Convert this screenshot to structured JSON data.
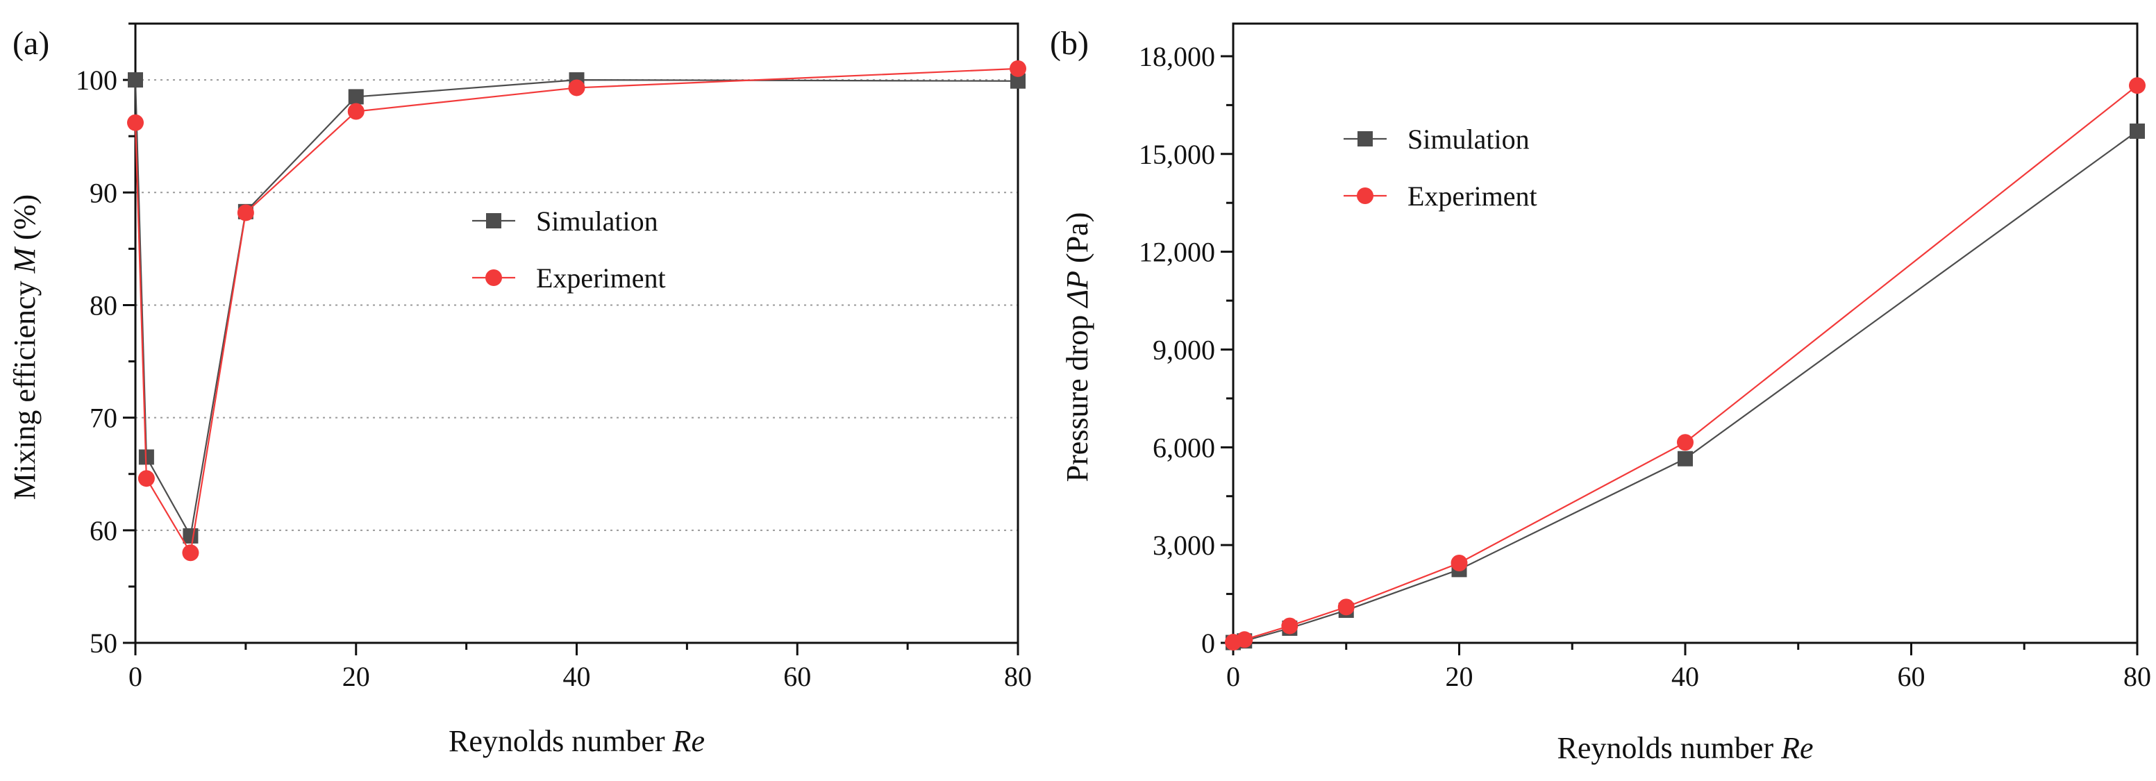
{
  "figure": {
    "panels": [
      "(a)",
      "(b)"
    ]
  },
  "chart_data": [
    {
      "type": "line",
      "panel_label": "(a)",
      "title": "",
      "xlabel_text": "Reynolds number ",
      "xlabel_italic": "Re",
      "ylabel_text": "Mixing efficiency ",
      "ylabel_italic": "M",
      "ylabel_suffix": " (%)",
      "xlim": [
        0,
        80
      ],
      "ylim": [
        50,
        105
      ],
      "xticks": [
        0,
        20,
        40,
        60,
        80
      ],
      "xtick_labels": [
        "0",
        "20",
        "40",
        "60",
        "80"
      ],
      "yticks": [
        50,
        60,
        70,
        80,
        90,
        100
      ],
      "ytick_labels": [
        "50",
        "60",
        "70",
        "80",
        "90",
        "100"
      ],
      "grid": "horizontal dotted",
      "legend_position": "center-right",
      "series": [
        {
          "name": "Simulation",
          "color": "#4d4d4d",
          "marker": "square",
          "x": [
            0,
            1,
            5,
            10,
            20,
            40,
            80
          ],
          "y": [
            100,
            66.5,
            59.5,
            88.3,
            98.5,
            100,
            99.9
          ]
        },
        {
          "name": "Experiment",
          "color": "#f23a3a",
          "marker": "circle",
          "x": [
            0,
            1,
            5,
            10,
            20,
            40,
            80
          ],
          "y": [
            96.2,
            64.6,
            58,
            88.2,
            97.2,
            99.3,
            101
          ]
        }
      ]
    },
    {
      "type": "line",
      "panel_label": "(b)",
      "title": "",
      "xlabel_text": "Reynolds number ",
      "xlabel_italic": "Re",
      "ylabel_text": "Pressure drop ",
      "ylabel_italic": "ΔP",
      "ylabel_suffix": " (Pa)",
      "xlim": [
        0,
        80
      ],
      "ylim": [
        0,
        19000
      ],
      "xticks": [
        0,
        20,
        40,
        60,
        80
      ],
      "xtick_labels": [
        "0",
        "20",
        "40",
        "60",
        "80"
      ],
      "yticks": [
        0,
        3000,
        6000,
        9000,
        12000,
        15000,
        18000
      ],
      "ytick_labels": [
        "0",
        "3,000",
        "6,000",
        "9,000",
        "12,000",
        "15,000",
        "18,000"
      ],
      "grid": "none",
      "legend_position": "top-left",
      "series": [
        {
          "name": "Simulation",
          "color": "#4d4d4d",
          "marker": "square",
          "x": [
            0,
            1,
            5,
            10,
            20,
            40,
            80
          ],
          "y": [
            10,
            60,
            450,
            1000,
            2250,
            5650,
            15700
          ]
        },
        {
          "name": "Experiment",
          "color": "#f23a3a",
          "marker": "circle",
          "x": [
            0,
            1,
            5,
            10,
            20,
            40,
            80
          ],
          "y": [
            20,
            100,
            520,
            1100,
            2450,
            6150,
            17100
          ]
        }
      ]
    }
  ]
}
